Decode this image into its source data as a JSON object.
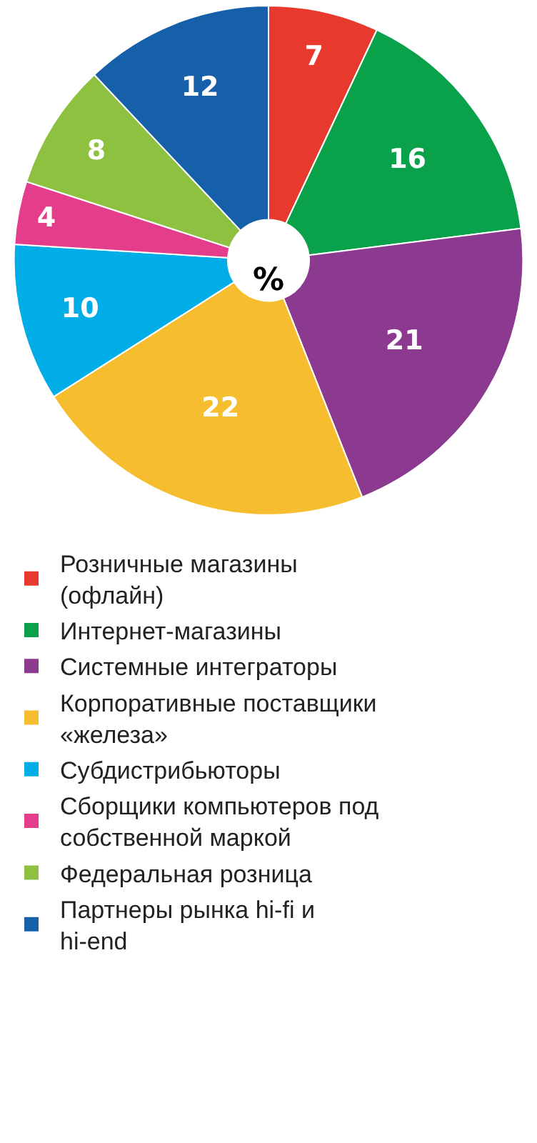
{
  "chart_data": {
    "type": "donut",
    "categories": [
      "Розничные магазины (офлайн)",
      "Интернет-магазины",
      "Системные интеграторы",
      "Корпоративные поставщики «железа»",
      "Субдистрибьюторы",
      "Сборщики компьютеров под собственной маркой",
      "Федеральная розница",
      "Партнеры рынка hi-fi и hi-end"
    ],
    "values": [
      7,
      16,
      21,
      22,
      10,
      4,
      8,
      12
    ],
    "colors": [
      "#e8392f",
      "#0aa14b",
      "#8b3a8f",
      "#f6bd2e",
      "#00ade6",
      "#e43d8c",
      "#8dc13f",
      "#1560a9"
    ],
    "data_labels": true,
    "legend": "bottom",
    "annotations": [
      "%"
    ]
  }
}
